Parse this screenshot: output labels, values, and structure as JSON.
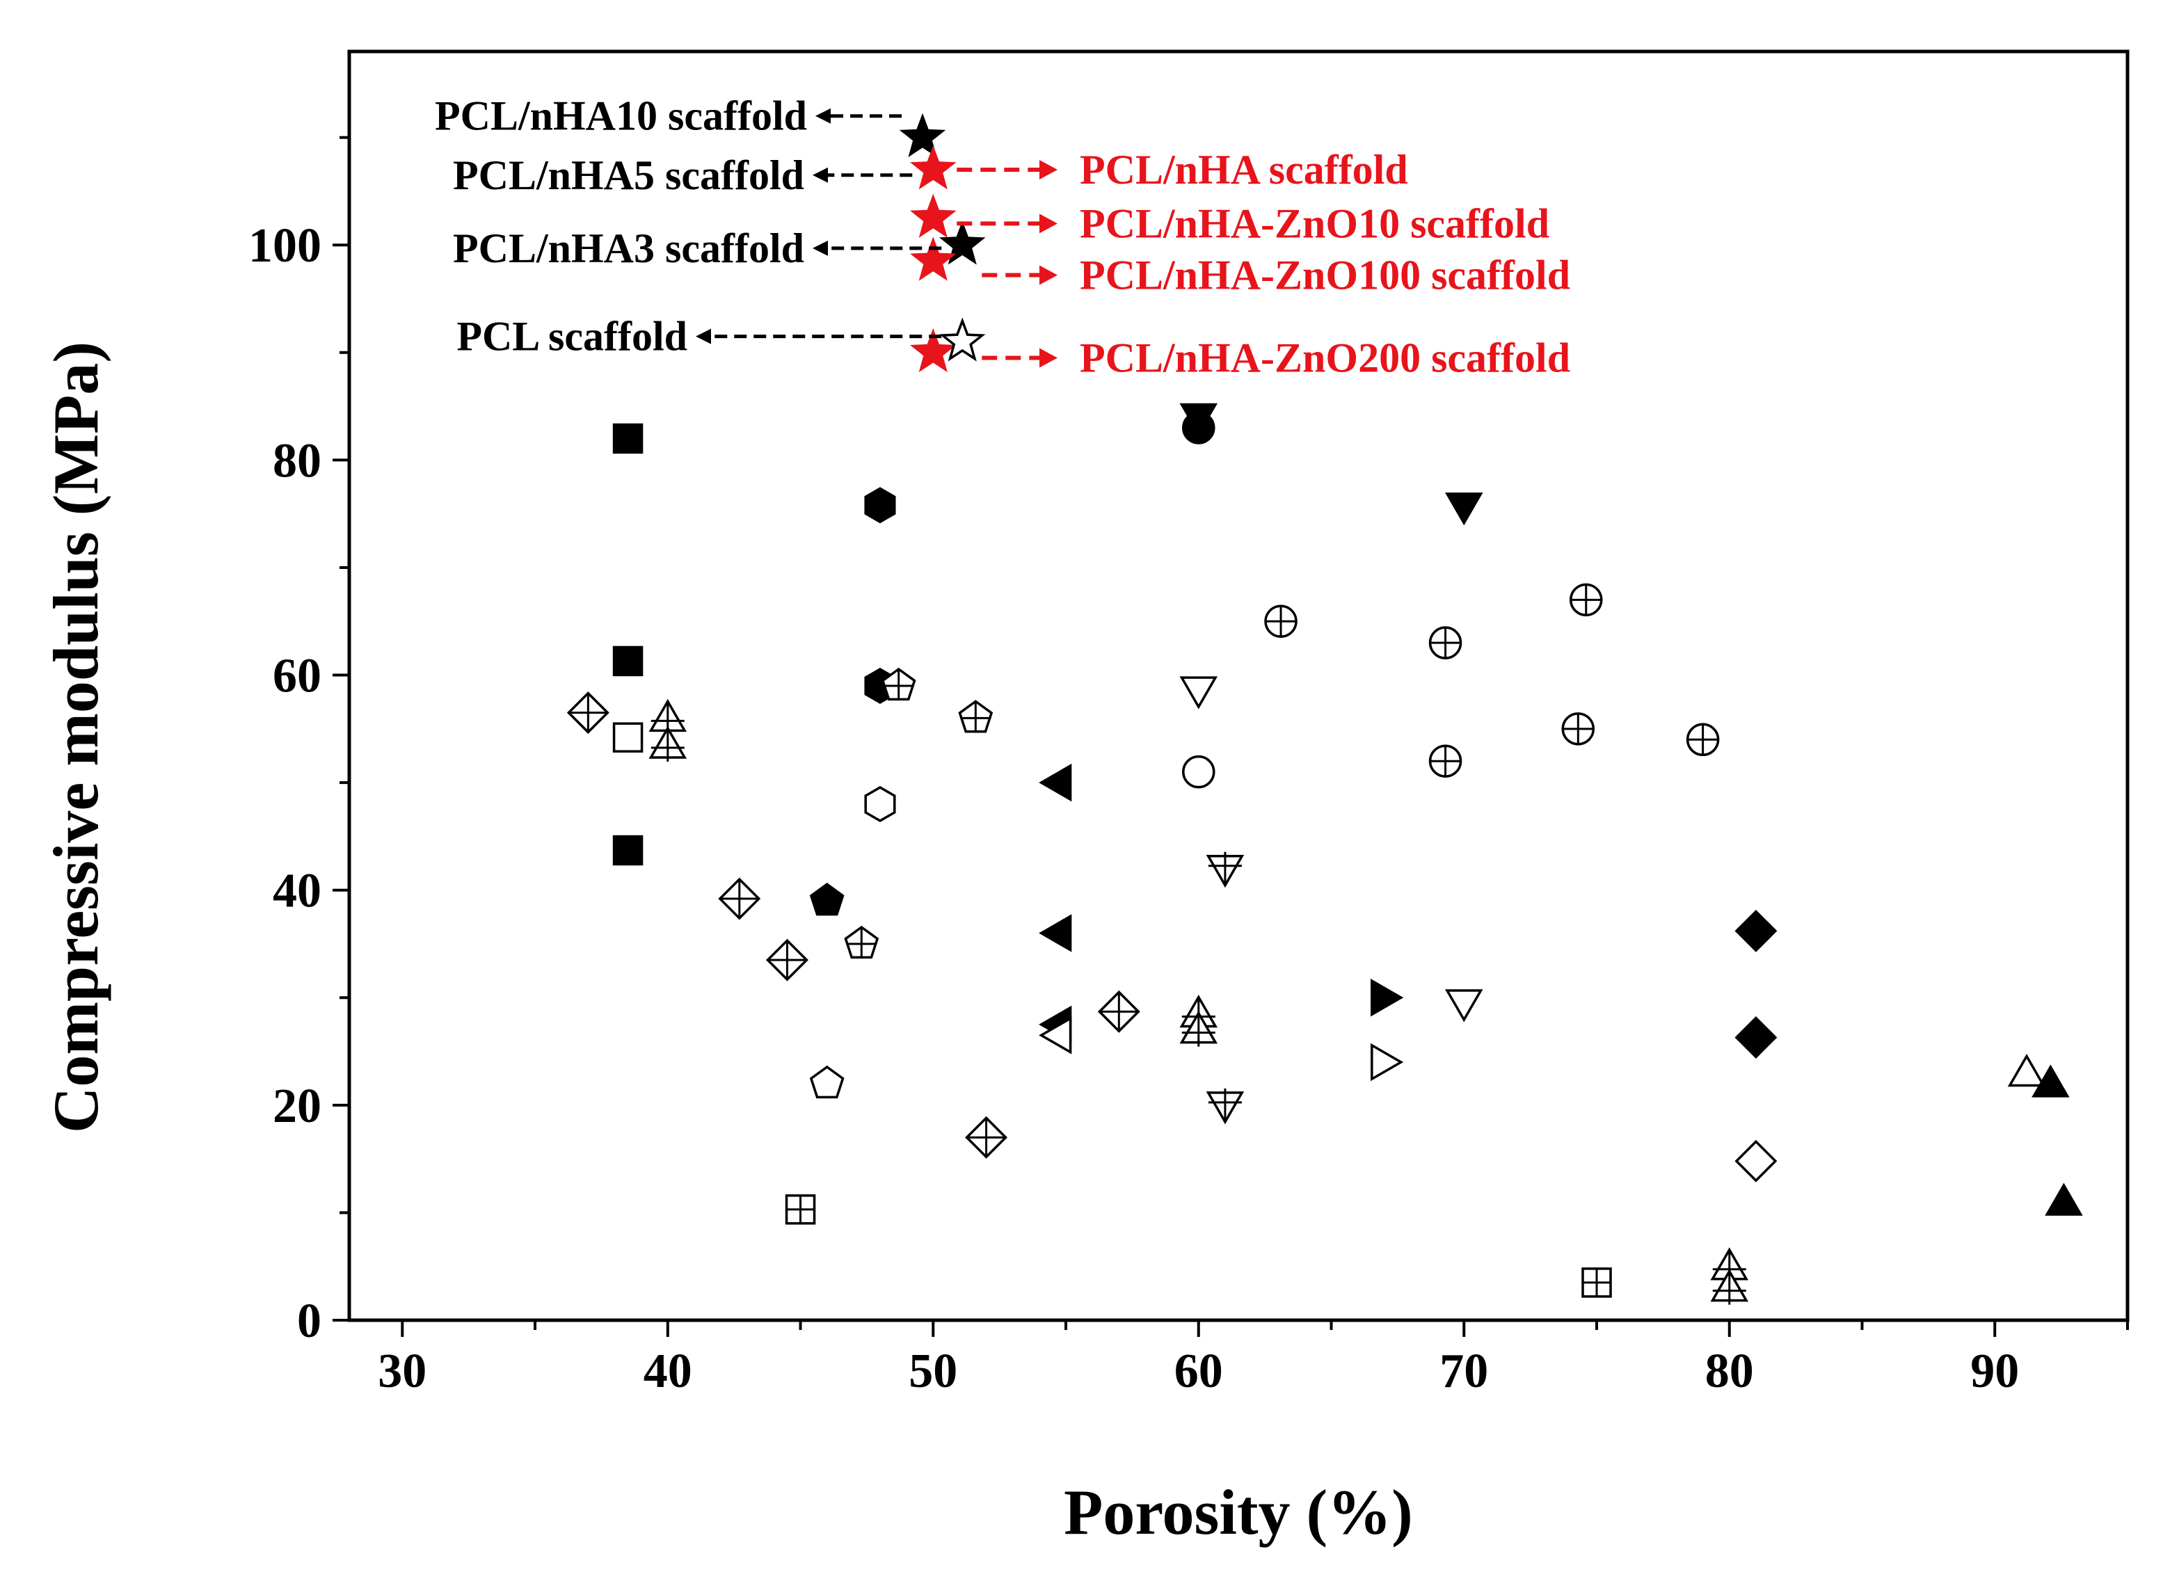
{
  "chart_data": {
    "type": "scatter",
    "title": "",
    "xlabel": "Porosity (%)",
    "ylabel": "Compressive modulus (MPa)",
    "xlim": [
      28,
      95
    ],
    "ylim": [
      0,
      118
    ],
    "xticks": [
      30,
      40,
      50,
      60,
      70,
      80,
      90
    ],
    "yticks": [
      0,
      20,
      40,
      60,
      80,
      100
    ],
    "grid": false,
    "series": [
      {
        "name": "filled-square",
        "marker": "square",
        "filled": true,
        "points": [
          [
            38.5,
            82
          ],
          [
            38.5,
            61.3
          ],
          [
            38.5,
            43.7
          ]
        ]
      },
      {
        "name": "open-square",
        "marker": "square",
        "filled": false,
        "points": [
          [
            38.5,
            54.2
          ]
        ]
      },
      {
        "name": "diamond-cross",
        "marker": "diamond-cross",
        "filled": false,
        "points": [
          [
            37,
            56.5
          ],
          [
            42.7,
            39.2
          ],
          [
            44.5,
            33.5
          ],
          [
            52,
            17
          ],
          [
            57,
            28.7
          ]
        ]
      },
      {
        "name": "triangle-up-cross",
        "marker": "triangle-cross",
        "filled": false,
        "points": [
          [
            40,
            56
          ],
          [
            40,
            53.5
          ],
          [
            60,
            28.5
          ],
          [
            60,
            27
          ],
          [
            80,
            5
          ],
          [
            80,
            3
          ]
        ]
      },
      {
        "name": "filled-hexagon",
        "marker": "hexagon",
        "filled": true,
        "points": [
          [
            48,
            75.8
          ],
          [
            48,
            59
          ]
        ]
      },
      {
        "name": "open-hexagon",
        "marker": "hexagon",
        "filled": false,
        "points": [
          [
            48,
            48
          ]
        ]
      },
      {
        "name": "pentagon-cross",
        "marker": "pentagon-cross",
        "filled": false,
        "points": [
          [
            48.7,
            59
          ],
          [
            51.6,
            56
          ],
          [
            47.3,
            35
          ]
        ]
      },
      {
        "name": "filled-pentagon",
        "marker": "pentagon",
        "filled": true,
        "points": [
          [
            46,
            39
          ]
        ]
      },
      {
        "name": "open-pentagon",
        "marker": "pentagon",
        "filled": false,
        "points": [
          [
            46,
            22
          ]
        ]
      },
      {
        "name": "square-plus",
        "marker": "square-plus",
        "filled": false,
        "points": [
          [
            45,
            10.3
          ],
          [
            75,
            3.5
          ]
        ]
      },
      {
        "name": "filled-triangle-left",
        "marker": "triangle-left",
        "filled": true,
        "points": [
          [
            54.7,
            50
          ],
          [
            54.7,
            36
          ],
          [
            54.7,
            27.5
          ]
        ]
      },
      {
        "name": "open-triangle-left",
        "marker": "triangle-left",
        "filled": false,
        "points": [
          [
            54.7,
            26.5
          ]
        ]
      },
      {
        "name": "filled-triangle-down",
        "marker": "triangle-down",
        "filled": true,
        "points": [
          [
            60,
            84
          ],
          [
            70,
            75.7
          ]
        ]
      },
      {
        "name": "filled-circle",
        "marker": "circle",
        "filled": true,
        "points": [
          [
            60,
            83
          ]
        ]
      },
      {
        "name": "open-triangle-down",
        "marker": "triangle-down",
        "filled": false,
        "points": [
          [
            60,
            58.6
          ],
          [
            70,
            29.5
          ]
        ]
      },
      {
        "name": "open-circle",
        "marker": "circle",
        "filled": false,
        "points": [
          [
            60,
            51
          ]
        ]
      },
      {
        "name": "triangle-down-cross",
        "marker": "triangle-down-cross",
        "filled": false,
        "points": [
          [
            61,
            42
          ],
          [
            61,
            20
          ]
        ]
      },
      {
        "name": "circle-plus",
        "marker": "circle-plus",
        "filled": false,
        "points": [
          [
            63.1,
            65
          ],
          [
            69.3,
            63
          ],
          [
            69.3,
            52
          ],
          [
            74.6,
            67
          ],
          [
            74.3,
            55
          ],
          [
            79,
            54
          ]
        ]
      },
      {
        "name": "filled-triangle-right",
        "marker": "triangle-right",
        "filled": true,
        "points": [
          [
            67,
            30
          ]
        ]
      },
      {
        "name": "open-triangle-right",
        "marker": "triangle-right",
        "filled": false,
        "points": [
          [
            67,
            24
          ]
        ]
      },
      {
        "name": "filled-diamond",
        "marker": "diamond",
        "filled": true,
        "points": [
          [
            81,
            36.2
          ],
          [
            81,
            26.3
          ]
        ]
      },
      {
        "name": "open-diamond",
        "marker": "diamond",
        "filled": false,
        "points": [
          [
            81,
            14.8
          ]
        ]
      },
      {
        "name": "open-triangle-up",
        "marker": "triangle-up",
        "filled": false,
        "points": [
          [
            91.2,
            23
          ]
        ]
      },
      {
        "name": "filled-triangle-up",
        "marker": "triangle-up",
        "filled": true,
        "points": [
          [
            92.1,
            22
          ],
          [
            92.6,
            11
          ]
        ]
      },
      {
        "name": "black-star",
        "marker": "star",
        "filled": true,
        "points": [
          [
            49.6,
            110
          ],
          [
            51.1,
            100
          ]
        ]
      },
      {
        "name": "red-star",
        "marker": "star",
        "filled": true,
        "color": "#e8141b",
        "points": [
          [
            50,
            107
          ],
          [
            50,
            102.5
          ],
          [
            50,
            98.5
          ],
          [
            50,
            90
          ]
        ]
      },
      {
        "name": "open-star",
        "marker": "star",
        "filled": false,
        "points": [
          [
            51.1,
            91
          ]
        ]
      }
    ],
    "annotations": [
      {
        "text": "PCL/nHA10 scaffold",
        "color": "#000000",
        "side": "left",
        "point": [
          49.6,
          110
        ],
        "label_y": 112
      },
      {
        "text": "PCL/nHA5 scaffold",
        "color": "#000000",
        "side": "left",
        "point": [
          50,
          107
        ],
        "label_y": 106.5
      },
      {
        "text": "PCL/nHA3 scaffold",
        "color": "#000000",
        "side": "left",
        "point": [
          51.1,
          100
        ],
        "label_y": 99.7
      },
      {
        "text": "PCL scaffold",
        "color": "#000000",
        "side": "left",
        "point": [
          51.1,
          91
        ],
        "label_y": 91.5
      },
      {
        "text": "PCL/nHA scaffold",
        "color": "#e8141b",
        "side": "right",
        "point": [
          50,
          107
        ],
        "label_y": 107
      },
      {
        "text": "PCL/nHA-ZnO10 scaffold",
        "color": "#e8141b",
        "side": "right",
        "point": [
          50,
          102.5
        ],
        "label_y": 102
      },
      {
        "text": "PCL/nHA-ZnO100 scaffold",
        "color": "#e8141b",
        "side": "right",
        "point": [
          50,
          98.5
        ],
        "label_y": 97.2
      },
      {
        "text": "PCL/nHA-ZnO200 scaffold",
        "color": "#e8141b",
        "side": "right",
        "point": [
          50,
          90
        ],
        "label_y": 89.5
      }
    ]
  }
}
